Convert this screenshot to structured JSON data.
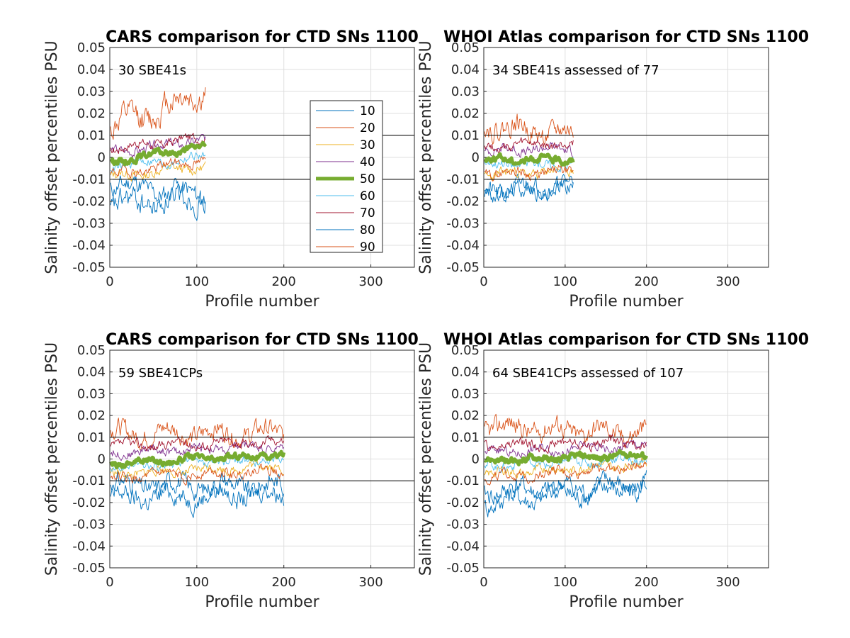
{
  "chart_data": [
    {
      "type": "line",
      "title": "CARS comparison for CTD SNs 1100",
      "annotation": "30 SBE41s",
      "xlabel": "Profile number",
      "ylabel": "Salinity offset percentiles PSU",
      "xlim": [
        0,
        350
      ],
      "ylim": [
        -0.05,
        0.05
      ],
      "x_ticks": [
        0,
        100,
        200,
        300
      ],
      "y_ticks": [
        -0.05,
        -0.04,
        -0.03,
        -0.02,
        -0.01,
        0,
        0.01,
        0.02,
        0.03,
        0.04,
        0.05
      ],
      "grid": true,
      "reference_lines": [
        0.01,
        -0.01
      ],
      "legend": true,
      "legend_location": "inside right",
      "x_max": 110,
      "series": [
        {
          "name": "10",
          "start": -0.012,
          "end": -0.018,
          "amp": 0.006,
          "seed": 11
        },
        {
          "name": "20",
          "start": 0.013,
          "end": 0.03,
          "amp": 0.008,
          "seed": 12
        },
        {
          "name": "30",
          "start": -0.009,
          "end": -0.004,
          "amp": 0.003,
          "seed": 13
        },
        {
          "name": "40",
          "start": 0.002,
          "end": 0.008,
          "amp": 0.003,
          "seed": 14
        },
        {
          "name": "50",
          "start": -0.002,
          "end": 0.005,
          "amp": 0.002,
          "seed": 15
        },
        {
          "name": "60",
          "start": -0.004,
          "end": 0.0,
          "amp": 0.003,
          "seed": 16
        },
        {
          "name": "70",
          "start": 0.004,
          "end": 0.009,
          "amp": 0.003,
          "seed": 17
        },
        {
          "name": "80",
          "start": -0.022,
          "end": -0.018,
          "amp": 0.007,
          "seed": 18
        },
        {
          "name": "90",
          "start": -0.008,
          "end": -0.001,
          "amp": 0.003,
          "seed": 19
        }
      ]
    },
    {
      "type": "line",
      "title": "WHOI Atlas comparison for CTD SNs 1100",
      "annotation": "34 SBE41s assessed of 77",
      "xlabel": "Profile number",
      "ylabel": "Salinity offset percentiles PSU",
      "xlim": [
        0,
        350
      ],
      "ylim": [
        -0.05,
        0.05
      ],
      "x_ticks": [
        0,
        100,
        200,
        300
      ],
      "y_ticks": [
        -0.05,
        -0.04,
        -0.03,
        -0.02,
        -0.01,
        0,
        0.01,
        0.02,
        0.03,
        0.04,
        0.05
      ],
      "grid": true,
      "reference_lines": [
        0.01,
        -0.01
      ],
      "legend": false,
      "x_max": 110,
      "series": [
        {
          "name": "10",
          "start": -0.015,
          "end": -0.012,
          "amp": 0.005,
          "seed": 21
        },
        {
          "name": "20",
          "start": 0.015,
          "end": 0.01,
          "amp": 0.006,
          "seed": 22
        },
        {
          "name": "30",
          "start": -0.008,
          "end": -0.006,
          "amp": 0.003,
          "seed": 23
        },
        {
          "name": "40",
          "start": 0.003,
          "end": 0.004,
          "amp": 0.003,
          "seed": 24
        },
        {
          "name": "50",
          "start": -0.001,
          "end": -0.001,
          "amp": 0.002,
          "seed": 25
        },
        {
          "name": "60",
          "start": -0.003,
          "end": -0.003,
          "amp": 0.003,
          "seed": 26
        },
        {
          "name": "70",
          "start": 0.005,
          "end": 0.006,
          "amp": 0.003,
          "seed": 27
        },
        {
          "name": "80",
          "start": -0.016,
          "end": -0.014,
          "amp": 0.005,
          "seed": 28
        },
        {
          "name": "90",
          "start": -0.007,
          "end": -0.007,
          "amp": 0.003,
          "seed": 29
        }
      ]
    },
    {
      "type": "line",
      "title": "CARS comparison for CTD SNs 1100",
      "annotation": "59 SBE41CPs",
      "xlabel": "Profile number",
      "ylabel": "Salinity offset percentiles PSU",
      "xlim": [
        0,
        350
      ],
      "ylim": [
        -0.05,
        0.05
      ],
      "x_ticks": [
        0,
        100,
        200,
        300
      ],
      "y_ticks": [
        -0.05,
        -0.04,
        -0.03,
        -0.02,
        -0.01,
        0,
        0.01,
        0.02,
        0.03,
        0.04,
        0.05
      ],
      "grid": true,
      "reference_lines": [
        0.01,
        -0.01
      ],
      "legend": false,
      "x_max": 200,
      "series": [
        {
          "name": "10",
          "start": -0.012,
          "end": -0.012,
          "amp": 0.006,
          "seed": 31
        },
        {
          "name": "20",
          "start": 0.012,
          "end": 0.012,
          "amp": 0.006,
          "seed": 32
        },
        {
          "name": "30",
          "start": -0.007,
          "end": -0.003,
          "amp": 0.003,
          "seed": 33
        },
        {
          "name": "40",
          "start": 0.003,
          "end": 0.006,
          "amp": 0.003,
          "seed": 34
        },
        {
          "name": "50",
          "start": -0.002,
          "end": 0.002,
          "amp": 0.002,
          "seed": 35
        },
        {
          "name": "60",
          "start": -0.004,
          "end": 0.0,
          "amp": 0.003,
          "seed": 36
        },
        {
          "name": "70",
          "start": 0.006,
          "end": 0.008,
          "amp": 0.003,
          "seed": 37
        },
        {
          "name": "80",
          "start": -0.018,
          "end": -0.016,
          "amp": 0.006,
          "seed": 38
        },
        {
          "name": "90",
          "start": -0.009,
          "end": -0.005,
          "amp": 0.003,
          "seed": 39
        }
      ]
    },
    {
      "type": "line",
      "title": "WHOI Atlas comparison for CTD SNs 1100",
      "annotation": "64 SBE41CPs assessed of 107",
      "xlabel": "Profile number",
      "ylabel": "Salinity offset percentiles PSU",
      "xlim": [
        0,
        350
      ],
      "ylim": [
        -0.05,
        0.05
      ],
      "x_ticks": [
        0,
        100,
        200,
        300
      ],
      "y_ticks": [
        -0.05,
        -0.04,
        -0.03,
        -0.02,
        -0.01,
        0,
        0.01,
        0.02,
        0.03,
        0.04,
        0.05
      ],
      "grid": true,
      "reference_lines": [
        0.01,
        -0.01
      ],
      "legend": false,
      "x_max": 200,
      "series": [
        {
          "name": "10",
          "start": -0.015,
          "end": -0.012,
          "amp": 0.006,
          "seed": 41
        },
        {
          "name": "20",
          "start": 0.015,
          "end": 0.012,
          "amp": 0.006,
          "seed": 42
        },
        {
          "name": "30",
          "start": -0.007,
          "end": -0.002,
          "amp": 0.003,
          "seed": 43
        },
        {
          "name": "40",
          "start": 0.003,
          "end": 0.006,
          "amp": 0.003,
          "seed": 44
        },
        {
          "name": "50",
          "start": -0.001,
          "end": 0.002,
          "amp": 0.002,
          "seed": 45
        },
        {
          "name": "60",
          "start": -0.003,
          "end": 0.0,
          "amp": 0.003,
          "seed": 46
        },
        {
          "name": "70",
          "start": 0.006,
          "end": 0.008,
          "amp": 0.003,
          "seed": 47
        },
        {
          "name": "80",
          "start": -0.02,
          "end": -0.012,
          "amp": 0.006,
          "seed": 48
        },
        {
          "name": "90",
          "start": -0.009,
          "end": -0.003,
          "amp": 0.003,
          "seed": 49
        }
      ]
    }
  ],
  "colors": {
    "10": "#0072bd",
    "20": "#d95319",
    "30": "#edb120",
    "40": "#7e2f8e",
    "50": "#77ac30",
    "60": "#4dbeee",
    "70": "#a2142f",
    "80": "#0072bd",
    "90": "#d95319"
  }
}
